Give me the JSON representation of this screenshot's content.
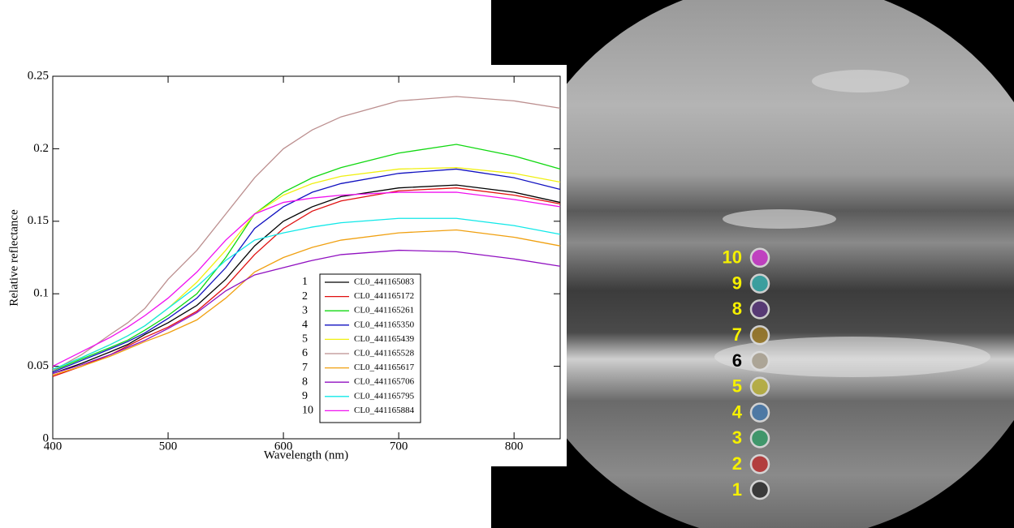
{
  "chart_data": {
    "type": "line",
    "x_label": "Wavelength (nm)",
    "y_label": "Relative reflectance",
    "xlim": [
      400,
      840
    ],
    "ylim": [
      0,
      0.25
    ],
    "xticks": [
      400,
      500,
      600,
      700,
      800
    ],
    "yticks": [
      0,
      0.05,
      0.1,
      0.15,
      0.2,
      0.25
    ],
    "x": [
      400,
      425,
      450,
      465,
      480,
      500,
      525,
      550,
      575,
      600,
      625,
      650,
      700,
      750,
      800,
      840
    ],
    "series": [
      {
        "label": "1",
        "name": "CL0_441165083",
        "color": "#000000",
        "values": [
          0.045,
          0.052,
          0.06,
          0.065,
          0.072,
          0.08,
          0.092,
          0.11,
          0.133,
          0.15,
          0.16,
          0.167,
          0.173,
          0.175,
          0.17,
          0.163
        ]
      },
      {
        "label": "2",
        "name": "CL0_441165172",
        "color": "#e01010",
        "values": [
          0.043,
          0.05,
          0.058,
          0.064,
          0.07,
          0.077,
          0.088,
          0.105,
          0.127,
          0.145,
          0.157,
          0.164,
          0.171,
          0.173,
          0.168,
          0.162
        ]
      },
      {
        "label": "3",
        "name": "CL0_441165261",
        "color": "#10d810",
        "values": [
          0.047,
          0.055,
          0.063,
          0.068,
          0.075,
          0.085,
          0.1,
          0.125,
          0.155,
          0.17,
          0.18,
          0.187,
          0.197,
          0.203,
          0.195,
          0.186
        ]
      },
      {
        "label": "4",
        "name": "CL0_441165350",
        "color": "#1010c0",
        "values": [
          0.046,
          0.054,
          0.062,
          0.067,
          0.073,
          0.083,
          0.097,
          0.118,
          0.145,
          0.16,
          0.17,
          0.176,
          0.183,
          0.186,
          0.18,
          0.172
        ]
      },
      {
        "label": "5",
        "name": "CL0_441165439",
        "color": "#f0f010",
        "values": [
          0.048,
          0.056,
          0.065,
          0.071,
          0.078,
          0.09,
          0.108,
          0.13,
          0.155,
          0.168,
          0.176,
          0.181,
          0.186,
          0.187,
          0.183,
          0.177
        ]
      },
      {
        "label": "6",
        "name": "CL0_441165528",
        "color": "#bc8f8f",
        "values": [
          0.047,
          0.058,
          0.072,
          0.08,
          0.09,
          0.11,
          0.13,
          0.155,
          0.18,
          0.2,
          0.213,
          0.222,
          0.233,
          0.236,
          0.233,
          0.228
        ]
      },
      {
        "label": "7",
        "name": "CL0_441165617",
        "color": "#f0a010",
        "values": [
          0.044,
          0.05,
          0.057,
          0.062,
          0.067,
          0.073,
          0.082,
          0.097,
          0.115,
          0.125,
          0.132,
          0.137,
          0.142,
          0.144,
          0.139,
          0.133
        ]
      },
      {
        "label": "8",
        "name": "CL0_441165706",
        "color": "#9010c0",
        "values": [
          0.045,
          0.051,
          0.058,
          0.063,
          0.068,
          0.076,
          0.087,
          0.102,
          0.113,
          0.118,
          0.123,
          0.127,
          0.13,
          0.129,
          0.124,
          0.119
        ]
      },
      {
        "label": "9",
        "name": "CL0_441165795",
        "color": "#10e8e8",
        "values": [
          0.048,
          0.056,
          0.065,
          0.071,
          0.078,
          0.09,
          0.105,
          0.123,
          0.137,
          0.142,
          0.146,
          0.149,
          0.152,
          0.152,
          0.147,
          0.141
        ]
      },
      {
        "label": "10",
        "name": "CL0_441165884",
        "color": "#f010f0",
        "values": [
          0.05,
          0.06,
          0.07,
          0.077,
          0.085,
          0.097,
          0.115,
          0.137,
          0.155,
          0.163,
          0.166,
          0.168,
          0.17,
          0.17,
          0.165,
          0.16
        ]
      }
    ]
  },
  "image_markers": [
    {
      "label": "1",
      "color": "#333333",
      "label_color": "#f5f000"
    },
    {
      "label": "2",
      "color": "#b83838",
      "label_color": "#f5f000"
    },
    {
      "label": "3",
      "color": "#3a9a6a",
      "label_color": "#f5f000"
    },
    {
      "label": "4",
      "color": "#4a7aaa",
      "label_color": "#f5f000"
    },
    {
      "label": "5",
      "color": "#b8b040",
      "label_color": "#f5f000"
    },
    {
      "label": "6",
      "color": "#a8a090",
      "label_color": "#000000"
    },
    {
      "label": "7",
      "color": "#9a7a2a",
      "label_color": "#f5f000"
    },
    {
      "label": "8",
      "color": "#5a3a7a",
      "label_color": "#f5f000"
    },
    {
      "label": "9",
      "color": "#3aa8a8",
      "label_color": "#f5f000"
    },
    {
      "label": "10",
      "color": "#c83cc8",
      "label_color": "#f5f000"
    }
  ]
}
